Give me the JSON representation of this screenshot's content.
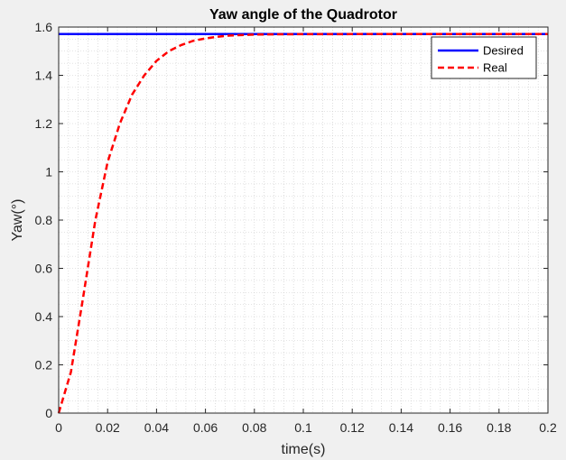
{
  "chart_data": {
    "type": "line",
    "title": "Yaw angle of the Quadrotor",
    "xlabel": "time(s)",
    "ylabel": "Yaw(°)",
    "xlim": [
      0,
      0.2
    ],
    "ylim": [
      0,
      1.6
    ],
    "xticks": [
      0,
      0.02,
      0.04,
      0.06,
      0.08,
      0.1,
      0.12,
      0.14,
      0.16,
      0.18,
      0.2
    ],
    "xtick_labels": [
      "0",
      "0.02",
      "0.04",
      "0.06",
      "0.08",
      "0.1",
      "0.12",
      "0.14",
      "0.16",
      "0.18",
      "0.2"
    ],
    "yticks": [
      0,
      0.2,
      0.4,
      0.6,
      0.8,
      1,
      1.2,
      1.4,
      1.6
    ],
    "ytick_labels": [
      "0",
      "0.2",
      "0.4",
      "0.6",
      "0.8",
      "1",
      "1.2",
      "1.4",
      "1.6"
    ],
    "grid": "major and minor, dotted",
    "legend_position": "top-right",
    "series": [
      {
        "name": "Desired",
        "color": "#0000ff",
        "style": "solid",
        "x": [
          0,
          0.2
        ],
        "y": [
          1.5708,
          1.5708
        ]
      },
      {
        "name": "Real",
        "color": "#ff0000",
        "style": "dashed",
        "x": [
          0,
          0.005,
          0.01,
          0.015,
          0.02,
          0.025,
          0.03,
          0.035,
          0.04,
          0.045,
          0.05,
          0.055,
          0.06,
          0.065,
          0.07,
          0.075,
          0.08,
          0.09,
          0.1,
          0.12,
          0.14,
          0.16,
          0.18,
          0.2
        ],
        "y": [
          0,
          0.17,
          0.48,
          0.8,
          1.04,
          1.2,
          1.32,
          1.4,
          1.46,
          1.5,
          1.525,
          1.543,
          1.553,
          1.56,
          1.565,
          1.567,
          1.569,
          1.57,
          1.5705,
          1.5708,
          1.5708,
          1.5708,
          1.5708,
          1.5708
        ]
      }
    ]
  }
}
